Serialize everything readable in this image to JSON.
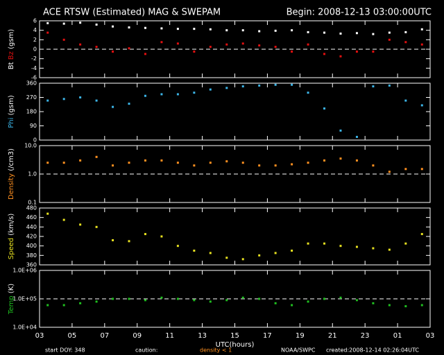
{
  "header": {
    "title": "ACE RTSW (Estimated) MAG & SWEPAM",
    "begin": "Begin: 2008-12-13 03:00:00UTC"
  },
  "chart_data": [
    {
      "type": "scatter",
      "ylabel": "(gsm)",
      "ylim": [
        -6,
        6
      ],
      "yticks": [
        -6,
        -4,
        -2,
        0,
        2,
        4,
        6
      ],
      "hline": 0,
      "xlim": [
        3,
        27
      ],
      "xticks": [
        {
          "value": 3,
          "label": "03"
        },
        {
          "value": 5,
          "label": "05"
        },
        {
          "value": 7,
          "label": "07"
        },
        {
          "value": 9,
          "label": "09"
        },
        11,
        13,
        15,
        17,
        19,
        21,
        23,
        {
          "value": 25,
          "label": "01"
        },
        {
          "value": 27,
          "label": "03"
        }
      ],
      "x": [
        3.5,
        4.5,
        5.5,
        6.5,
        7.5,
        8.5,
        9.5,
        10.5,
        11.5,
        12.5,
        13.5,
        14.5,
        15.5,
        16.5,
        17.5,
        18.5,
        19.5,
        20.5,
        21.5,
        22.5,
        23.5,
        24.5,
        25.5,
        26.5
      ],
      "series": [
        {
          "name": "Bt",
          "color": "#ffffff",
          "values": [
            5.5,
            5.4,
            5.6,
            5.2,
            4.8,
            4.6,
            4.5,
            4.4,
            4.3,
            4.3,
            4.2,
            4.0,
            4.0,
            3.8,
            3.9,
            4.0,
            3.6,
            3.5,
            3.3,
            3.4,
            3.2,
            3.5,
            3.6,
            4.2
          ]
        },
        {
          "name": "Bz",
          "color": "#e01010",
          "values": [
            3.5,
            2.0,
            1.0,
            0.5,
            -0.5,
            0.2,
            -1.0,
            1.5,
            1.2,
            -0.5,
            0.5,
            1.0,
            1.2,
            0.8,
            0.5,
            -0.5,
            1.0,
            -1.0,
            -1.5,
            -0.5,
            -0.5,
            2.0,
            1.5,
            1.0
          ]
        }
      ]
    },
    {
      "type": "scatter",
      "ylabel": "(gsm)",
      "ylim": [
        0,
        360
      ],
      "yticks": [
        0,
        90,
        180,
        270,
        360
      ],
      "xlim": [
        3,
        27
      ],
      "xticks": [
        {
          "value": 3,
          "label": "03"
        },
        {
          "value": 5,
          "label": "05"
        },
        {
          "value": 7,
          "label": "07"
        },
        {
          "value": 9,
          "label": "09"
        },
        11,
        13,
        15,
        17,
        19,
        21,
        23,
        {
          "value": 25,
          "label": "01"
        },
        {
          "value": 27,
          "label": "03"
        }
      ],
      "x": [
        3.5,
        4.5,
        5.5,
        6.5,
        7.5,
        8.5,
        9.5,
        10.5,
        11.5,
        12.5,
        13.5,
        14.5,
        15.5,
        16.5,
        17.5,
        18.5,
        19.5,
        20.5,
        21.5,
        22.5,
        23.5,
        24.5,
        25.5,
        26.5
      ],
      "series": [
        {
          "name": "Phi",
          "color": "#3cb4e6",
          "values": [
            250,
            260,
            270,
            250,
            210,
            230,
            280,
            290,
            290,
            300,
            320,
            330,
            340,
            345,
            350,
            350,
            300,
            200,
            60,
            20,
            340,
            345,
            250,
            220
          ]
        }
      ]
    },
    {
      "type": "scatter",
      "ylabel": "(/cm3)",
      "log": true,
      "ylim": [
        0.1,
        10
      ],
      "yticks": [
        0.1,
        {
          "value": 1,
          "label": "1.0"
        },
        {
          "value": 10,
          "label": "10.0"
        }
      ],
      "hline": 1,
      "xlim": [
        3,
        27
      ],
      "xticks": [
        {
          "value": 3,
          "label": "03"
        },
        {
          "value": 5,
          "label": "05"
        },
        {
          "value": 7,
          "label": "07"
        },
        {
          "value": 9,
          "label": "09"
        },
        11,
        13,
        15,
        17,
        19,
        21,
        23,
        {
          "value": 25,
          "label": "01"
        },
        {
          "value": 27,
          "label": "03"
        }
      ],
      "x": [
        3.5,
        4.5,
        5.5,
        6.5,
        7.5,
        8.5,
        9.5,
        10.5,
        11.5,
        12.5,
        13.5,
        14.5,
        15.5,
        16.5,
        17.5,
        18.5,
        19.5,
        20.5,
        21.5,
        22.5,
        23.5,
        24.5,
        25.5,
        26.5
      ],
      "series": [
        {
          "name": "Density",
          "color": "#ff9020",
          "values": [
            2.5,
            2.5,
            3.0,
            4.0,
            2.0,
            2.5,
            3.0,
            3.0,
            2.5,
            2.0,
            2.5,
            2.8,
            2.5,
            2.0,
            2.0,
            2.2,
            2.5,
            3.0,
            3.5,
            3.0,
            2.0,
            1.2,
            1.5,
            1.5
          ]
        }
      ]
    },
    {
      "type": "scatter",
      "ylabel": "(km/s)",
      "ylim": [
        360,
        480
      ],
      "yticks": [
        360,
        380,
        400,
        420,
        440,
        460,
        480
      ],
      "xlim": [
        3,
        27
      ],
      "xticks": [
        {
          "value": 3,
          "label": "03"
        },
        {
          "value": 5,
          "label": "05"
        },
        {
          "value": 7,
          "label": "07"
        },
        {
          "value": 9,
          "label": "09"
        },
        11,
        13,
        15,
        17,
        19,
        21,
        23,
        {
          "value": 25,
          "label": "01"
        },
        {
          "value": 27,
          "label": "03"
        }
      ],
      "x": [
        3.5,
        4.5,
        5.5,
        6.5,
        7.5,
        8.5,
        9.5,
        10.5,
        11.5,
        12.5,
        13.5,
        14.5,
        15.5,
        16.5,
        17.5,
        18.5,
        19.5,
        20.5,
        21.5,
        22.5,
        23.5,
        24.5,
        25.5,
        26.5
      ],
      "series": [
        {
          "name": "Speed",
          "color": "#e6e020",
          "values": [
            468,
            455,
            445,
            440,
            412,
            410,
            425,
            420,
            400,
            390,
            385,
            375,
            372,
            380,
            385,
            390,
            405,
            405,
            400,
            398,
            395,
            392,
            405,
            425
          ]
        }
      ]
    },
    {
      "type": "scatter",
      "ylabel": "(K)",
      "log": true,
      "ylim": [
        10000,
        1000000
      ],
      "yticks": [
        {
          "value": 10000,
          "label": "1.0E+04"
        },
        {
          "value": 100000,
          "label": "1.0E+05"
        },
        {
          "value": 1000000,
          "label": "1.0E+06"
        }
      ],
      "hline": 100000,
      "xlim": [
        3,
        27
      ],
      "xticks": [
        {
          "value": 3,
          "label": "03"
        },
        {
          "value": 5,
          "label": "05"
        },
        {
          "value": 7,
          "label": "07"
        },
        {
          "value": 9,
          "label": "09"
        },
        11,
        13,
        15,
        17,
        19,
        21,
        23,
        {
          "value": 25,
          "label": "01"
        },
        {
          "value": 27,
          "label": "03"
        }
      ],
      "xlabel": "UTC(hours)",
      "x": [
        3.5,
        4.5,
        5.5,
        6.5,
        7.5,
        8.5,
        9.5,
        10.5,
        11.5,
        12.5,
        13.5,
        14.5,
        15.5,
        16.5,
        17.5,
        18.5,
        19.5,
        20.5,
        21.5,
        22.5,
        23.5,
        24.5,
        25.5,
        26.5
      ],
      "series": [
        {
          "name": "Temp",
          "color": "#20c020",
          "values": [
            60000,
            60000,
            70000,
            80000,
            100000,
            100000,
            90000,
            110000,
            100000,
            90000,
            80000,
            90000,
            110000,
            100000,
            70000,
            60000,
            80000,
            100000,
            110000,
            90000,
            70000,
            60000,
            55000,
            60000
          ]
        }
      ]
    }
  ],
  "footer": {
    "start": "start DOY: 348",
    "caution": "caution:",
    "density": "density < 1",
    "source": "NOAA/SWPC",
    "created": "created:2008-12-14 02:26:04UTC"
  }
}
